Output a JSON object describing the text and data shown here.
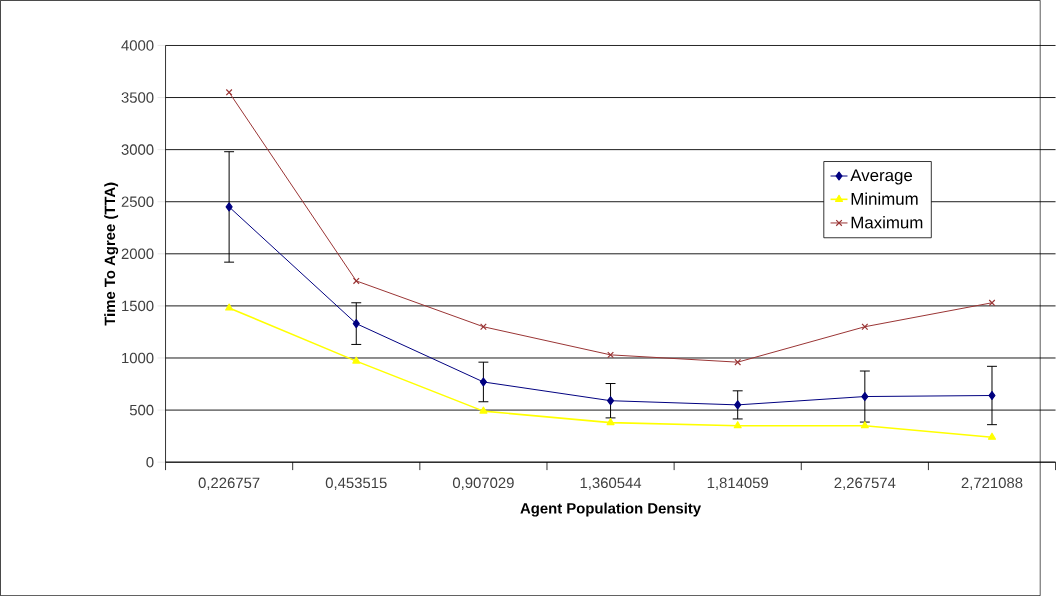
{
  "chart_data": {
    "type": "line",
    "xlabel": "Agent Population Density",
    "ylabel": "Time To Agree (TTA)",
    "categories": [
      "0,226757",
      "0,453515",
      "0,907029",
      "1,360544",
      "1,814059",
      "2,267574",
      "2,721088"
    ],
    "series": [
      {
        "name": "Average",
        "color": "#000080",
        "marker": "diamond",
        "values": [
          2450,
          1330,
          770,
          590,
          550,
          630,
          640
        ],
        "errors": [
          530,
          200,
          190,
          165,
          135,
          245,
          280
        ]
      },
      {
        "name": "Minimum",
        "color": "#ffff00",
        "marker": "triangle",
        "values": [
          1480,
          970,
          490,
          380,
          350,
          350,
          240
        ]
      },
      {
        "name": "Maximum",
        "color": "#993333",
        "marker": "cross",
        "values": [
          3550,
          1740,
          1300,
          1030,
          960,
          1300,
          1530
        ]
      }
    ],
    "ylim": [
      0,
      4000
    ],
    "yticks": [
      0,
      500,
      1000,
      1500,
      2000,
      2500,
      3000,
      3500,
      4000
    ],
    "grid": "y",
    "legend": "right",
    "line_style": "solid"
  }
}
